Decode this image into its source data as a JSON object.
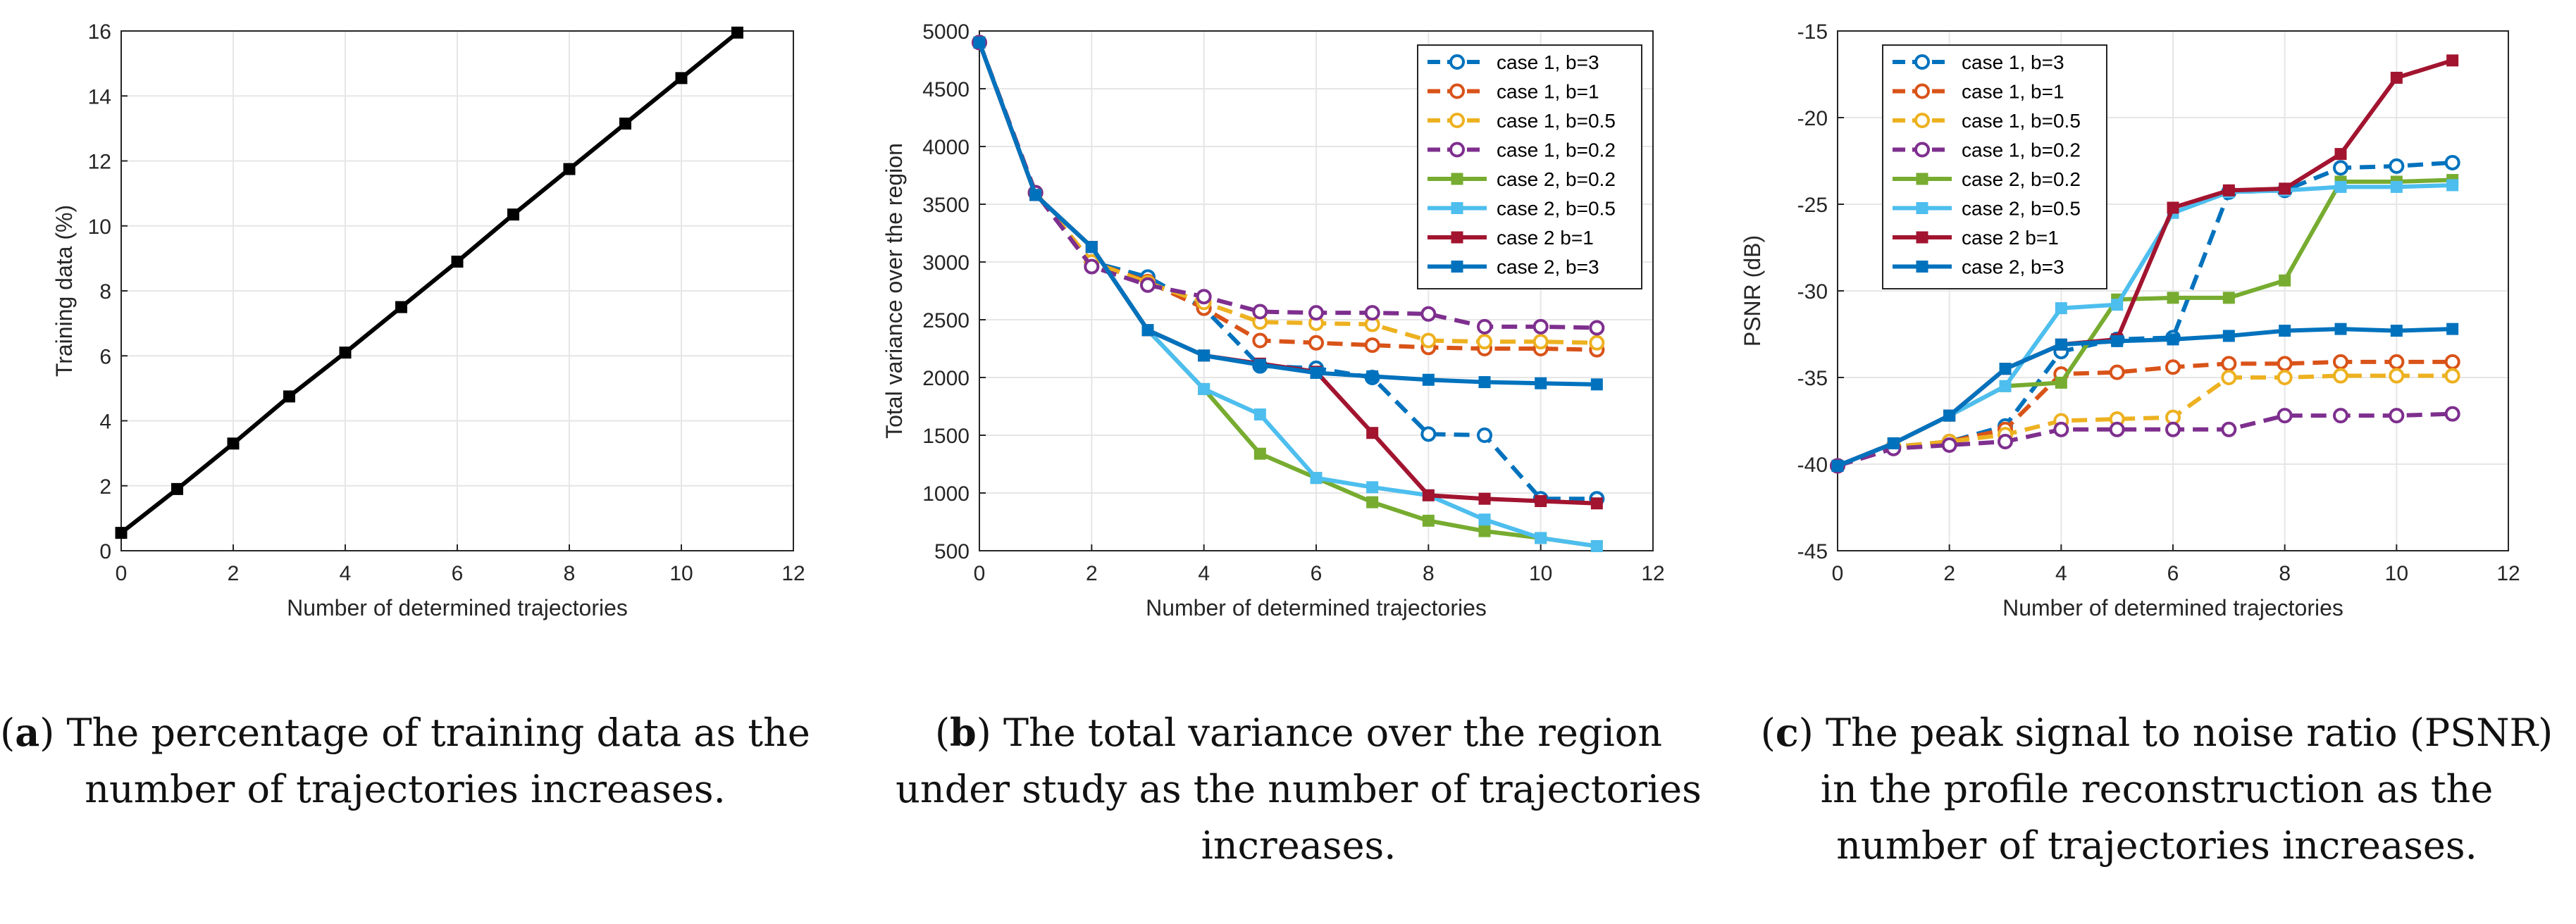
{
  "chart_data": [
    {
      "type": "line",
      "xlabel": "Number of determined trajectories",
      "ylabel": "Training data (%)",
      "xlim": [
        0,
        12
      ],
      "ylim": [
        0,
        16
      ],
      "xticks": [
        0,
        2,
        4,
        6,
        8,
        10,
        12
      ],
      "yticks": [
        0,
        2,
        4,
        6,
        8,
        10,
        12,
        14,
        16
      ],
      "grid": true,
      "legend": "none",
      "series": [
        {
          "color": "#000000",
          "style": "solid",
          "marker": "square",
          "x": [
            0,
            1,
            2,
            3,
            4,
            5,
            6,
            7,
            8,
            9,
            10,
            11
          ],
          "values": [
            0.55,
            1.9,
            3.3,
            4.75,
            6.1,
            7.5,
            8.9,
            10.35,
            11.75,
            13.15,
            14.55,
            15.95
          ]
        }
      ]
    },
    {
      "type": "line",
      "xlabel": "Number of determined trajectories",
      "ylabel": "Total variance over the region",
      "xlim": [
        0,
        12
      ],
      "ylim": [
        500,
        5000
      ],
      "xticks": [
        0,
        2,
        4,
        6,
        8,
        10,
        12
      ],
      "yticks": [
        500,
        1000,
        1500,
        2000,
        2500,
        3000,
        3500,
        4000,
        4500,
        5000
      ],
      "grid": true,
      "legend": "top-right",
      "series": [
        {
          "name": "case 1, b=3",
          "color": "#0072BD",
          "style": "dashed",
          "marker": "circle",
          "x": [
            0,
            1,
            2,
            3,
            4,
            5,
            6,
            7,
            8,
            9,
            10,
            11
          ],
          "values": [
            4900,
            3600,
            3000,
            2870,
            2600,
            2100,
            2080,
            2000,
            1510,
            1500,
            950,
            950
          ]
        },
        {
          "name": "case 1, b=1",
          "color": "#D95319",
          "style": "dashed",
          "marker": "circle",
          "x": [
            0,
            1,
            2,
            3,
            4,
            5,
            6,
            7,
            8,
            9,
            10,
            11
          ],
          "values": [
            4900,
            3600,
            3000,
            2830,
            2600,
            2320,
            2300,
            2280,
            2260,
            2250,
            2250,
            2240
          ]
        },
        {
          "name": "case 1, b=0.5",
          "color": "#EDB120",
          "style": "dashed",
          "marker": "circle",
          "x": [
            0,
            1,
            2,
            3,
            4,
            5,
            6,
            7,
            8,
            9,
            10,
            11
          ],
          "values": [
            4900,
            3600,
            3000,
            2820,
            2650,
            2480,
            2470,
            2460,
            2320,
            2310,
            2310,
            2300
          ]
        },
        {
          "name": "case 1, b=0.2",
          "color": "#7E2F8E",
          "style": "dashed",
          "marker": "circle",
          "x": [
            0,
            1,
            2,
            3,
            4,
            5,
            6,
            7,
            8,
            9,
            10,
            11
          ],
          "values": [
            4900,
            3600,
            2960,
            2800,
            2700,
            2570,
            2560,
            2560,
            2550,
            2440,
            2440,
            2430
          ]
        },
        {
          "name": "case 2, b=0.2",
          "color": "#77AC30",
          "style": "solid",
          "marker": "square",
          "x": [
            0,
            1,
            2,
            3,
            4,
            5,
            6,
            7,
            8,
            9,
            10,
            11
          ],
          "values": [
            4900,
            3580,
            3130,
            2410,
            1900,
            1340,
            1130,
            920,
            760,
            670,
            610,
            540
          ]
        },
        {
          "name": "case 2, b=0.5",
          "color": "#4DBEEE",
          "style": "solid",
          "marker": "square",
          "x": [
            0,
            1,
            2,
            3,
            4,
            5,
            6,
            7,
            8,
            9,
            10,
            11
          ],
          "values": [
            4900,
            3580,
            3130,
            2410,
            1900,
            1680,
            1130,
            1050,
            980,
            770,
            610,
            540
          ]
        },
        {
          "name": "case 2 b=1",
          "color": "#A2142F",
          "style": "solid",
          "marker": "square",
          "x": [
            0,
            1,
            2,
            3,
            4,
            5,
            6,
            7,
            8,
            9,
            10,
            11
          ],
          "values": [
            4900,
            3580,
            3130,
            2410,
            2190,
            2120,
            2050,
            1520,
            980,
            950,
            930,
            910
          ]
        },
        {
          "name": "case 2, b=3",
          "color": "#0072BD",
          "style": "solid",
          "marker": "square",
          "x": [
            0,
            1,
            2,
            3,
            4,
            5,
            6,
            7,
            8,
            9,
            10,
            11
          ],
          "values": [
            4900,
            3580,
            3130,
            2410,
            2190,
            2110,
            2040,
            2010,
            1980,
            1960,
            1950,
            1940
          ]
        }
      ]
    },
    {
      "type": "line",
      "xlabel": "Number of determined trajectories",
      "ylabel": "PSNR (dB)",
      "xlim": [
        0,
        12
      ],
      "ylim": [
        -45,
        -15
      ],
      "xticks": [
        0,
        2,
        4,
        6,
        8,
        10,
        12
      ],
      "yticks": [
        -45,
        -40,
        -35,
        -30,
        -25,
        -20,
        -15
      ],
      "grid": true,
      "legend": "top-left",
      "series": [
        {
          "name": "case 1, b=3",
          "color": "#0072BD",
          "style": "dashed",
          "marker": "circle",
          "x": [
            0,
            1,
            2,
            3,
            4,
            5,
            6,
            7,
            8,
            9,
            10,
            11
          ],
          "values": [
            -40.1,
            -39.0,
            -38.7,
            -37.8,
            -33.5,
            -32.8,
            -32.7,
            -24.3,
            -24.2,
            -22.9,
            -22.8,
            -22.6
          ]
        },
        {
          "name": "case 1, b=1",
          "color": "#D95319",
          "style": "dashed",
          "marker": "circle",
          "x": [
            0,
            1,
            2,
            3,
            4,
            5,
            6,
            7,
            8,
            9,
            10,
            11
          ],
          "values": [
            -40.1,
            -39.0,
            -38.7,
            -38.0,
            -34.8,
            -34.7,
            -34.4,
            -34.2,
            -34.2,
            -34.1,
            -34.1,
            -34.1
          ]
        },
        {
          "name": "case 1, b=0.5",
          "color": "#EDB120",
          "style": "dashed",
          "marker": "circle",
          "x": [
            0,
            1,
            2,
            3,
            4,
            5,
            6,
            7,
            8,
            9,
            10,
            11
          ],
          "values": [
            -40.1,
            -39.0,
            -38.7,
            -38.3,
            -37.5,
            -37.4,
            -37.3,
            -35.0,
            -35.0,
            -34.9,
            -34.9,
            -34.9
          ]
        },
        {
          "name": "case 1, b=0.2",
          "color": "#7E2F8E",
          "style": "dashed",
          "marker": "circle",
          "x": [
            0,
            1,
            2,
            3,
            4,
            5,
            6,
            7,
            8,
            9,
            10,
            11
          ],
          "values": [
            -40.1,
            -39.1,
            -38.9,
            -38.7,
            -38.0,
            -38.0,
            -38.0,
            -38.0,
            -37.2,
            -37.2,
            -37.2,
            -37.1
          ]
        },
        {
          "name": "case 2, b=0.2",
          "color": "#77AC30",
          "style": "solid",
          "marker": "square",
          "x": [
            0,
            1,
            2,
            3,
            4,
            5,
            6,
            7,
            8,
            9,
            10,
            11
          ],
          "values": [
            -40.1,
            -38.8,
            -37.2,
            -35.5,
            -35.3,
            -30.5,
            -30.4,
            -30.4,
            -29.4,
            -23.7,
            -23.7,
            -23.6
          ]
        },
        {
          "name": "case 2, b=0.5",
          "color": "#4DBEEE",
          "style": "solid",
          "marker": "square",
          "x": [
            0,
            1,
            2,
            3,
            4,
            5,
            6,
            7,
            8,
            9,
            10,
            11
          ],
          "values": [
            -40.1,
            -38.8,
            -37.2,
            -35.5,
            -31.0,
            -30.8,
            -25.5,
            -24.3,
            -24.2,
            -24.0,
            -24.0,
            -23.9
          ]
        },
        {
          "name": "case 2 b=1",
          "color": "#A2142F",
          "style": "solid",
          "marker": "square",
          "x": [
            0,
            1,
            2,
            3,
            4,
            5,
            6,
            7,
            8,
            9,
            10,
            11
          ],
          "values": [
            -40.1,
            -38.8,
            -37.2,
            -34.5,
            -33.1,
            -32.8,
            -25.2,
            -24.2,
            -24.1,
            -22.1,
            -17.7,
            -16.7
          ]
        },
        {
          "name": "case 2, b=3",
          "color": "#0072BD",
          "style": "solid",
          "marker": "square",
          "x": [
            0,
            1,
            2,
            3,
            4,
            5,
            6,
            7,
            8,
            9,
            10,
            11
          ],
          "values": [
            -40.1,
            -38.8,
            -37.2,
            -34.5,
            -33.1,
            -32.9,
            -32.8,
            -32.6,
            -32.3,
            -32.2,
            -32.3,
            -32.2
          ]
        }
      ]
    }
  ],
  "captions": [
    {
      "letter": "a",
      "text": ") The percentage of training data as the number of trajectories increases."
    },
    {
      "letter": "b",
      "text": ") The total variance over the region under study as the number of trajectories increases."
    },
    {
      "letter": "c",
      "text": ") The peak signal to noise ratio (PSNR) in the profile reconstruction as the number of trajectories increases."
    }
  ]
}
